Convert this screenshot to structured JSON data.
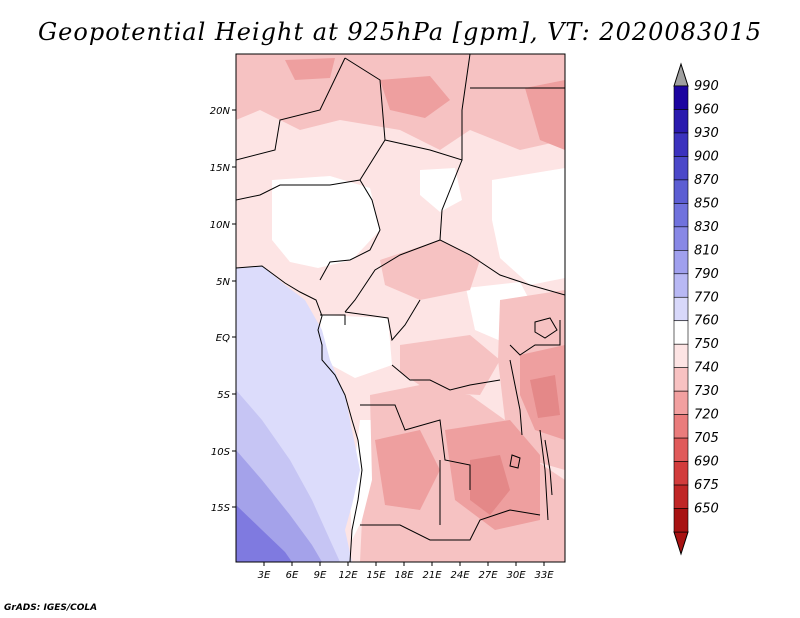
{
  "title": "Geopotential Height at 925hPa [gpm], VT: 2020083015",
  "footer": "GrADS: IGES/COLA",
  "map": {
    "lat_labels": [
      "20N",
      "15N",
      "10N",
      "5N",
      "EQ",
      "5S",
      "10S",
      "15S"
    ],
    "lon_labels": [
      "3E",
      "6E",
      "9E",
      "12E",
      "15E",
      "18E",
      "21E",
      "24E",
      "27E",
      "30E",
      "33E"
    ]
  },
  "colorbar": {
    "levels": [
      "990",
      "960",
      "930",
      "900",
      "870",
      "850",
      "830",
      "810",
      "790",
      "770",
      "760",
      "750",
      "740",
      "730",
      "720",
      "705",
      "690",
      "675",
      "650"
    ],
    "colors": [
      "#1c04a0",
      "#2a1aae",
      "#3b32be",
      "#4b48c9",
      "#5c5ed3",
      "#7072dd",
      "#8888e6",
      "#a0a0ee",
      "#b8b8f4",
      "#d8d8fa",
      "#ffffff",
      "#fde4e4",
      "#f8c2c2",
      "#f2a0a0",
      "#ea7c7c",
      "#e05a5a",
      "#d23c3c",
      "#c02626",
      "#a81212"
    ]
  },
  "colors": {
    "ocean_deep": "#7f7ae0",
    "ocean_mid": "#a4a2ea",
    "ocean_light": "#c6c5f4",
    "ocean_pale": "#dcdcfb",
    "land_pale": "#fde4e4",
    "land_mid": "#f6c2c2",
    "land_dark": "#ee9f9f",
    "land_darker": "#e48888"
  }
}
